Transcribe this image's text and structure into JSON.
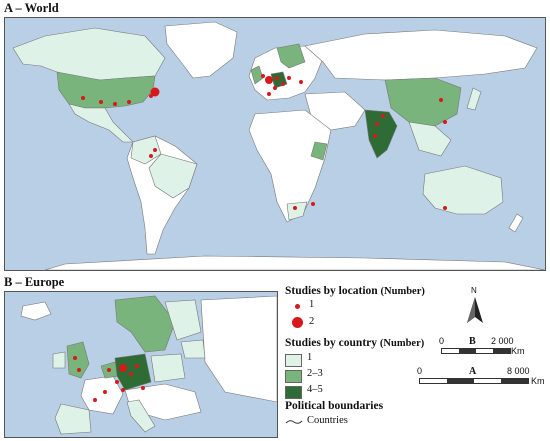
{
  "panels": {
    "world_title": "A – World",
    "europe_title": "B – Europe"
  },
  "legend": {
    "location_title": "Studies by location",
    "location_unit": "(Number)",
    "location_items": [
      {
        "label": "1",
        "size": "small"
      },
      {
        "label": "2",
        "size": "large"
      }
    ],
    "country_title": "Studies by country",
    "country_unit": "(Number)",
    "country_items": [
      {
        "label": "1",
        "color": "#dff2e8"
      },
      {
        "label": "2–3",
        "color": "#78b47c"
      },
      {
        "label": "4–5",
        "color": "#2f6b35"
      }
    ],
    "boundaries_title": "Political boundaries",
    "boundaries_item": "Countries"
  },
  "scalebars": {
    "north": "N",
    "B": {
      "letter": "B",
      "start": "0",
      "end": "2 000",
      "unit": "Km"
    },
    "A": {
      "letter": "A",
      "start": "0",
      "end": "8 000",
      "unit": "Km"
    }
  },
  "colors": {
    "ocean": "#b9cfe6",
    "land_default": "#ffffff",
    "study_dot": "#d7191c"
  }
}
